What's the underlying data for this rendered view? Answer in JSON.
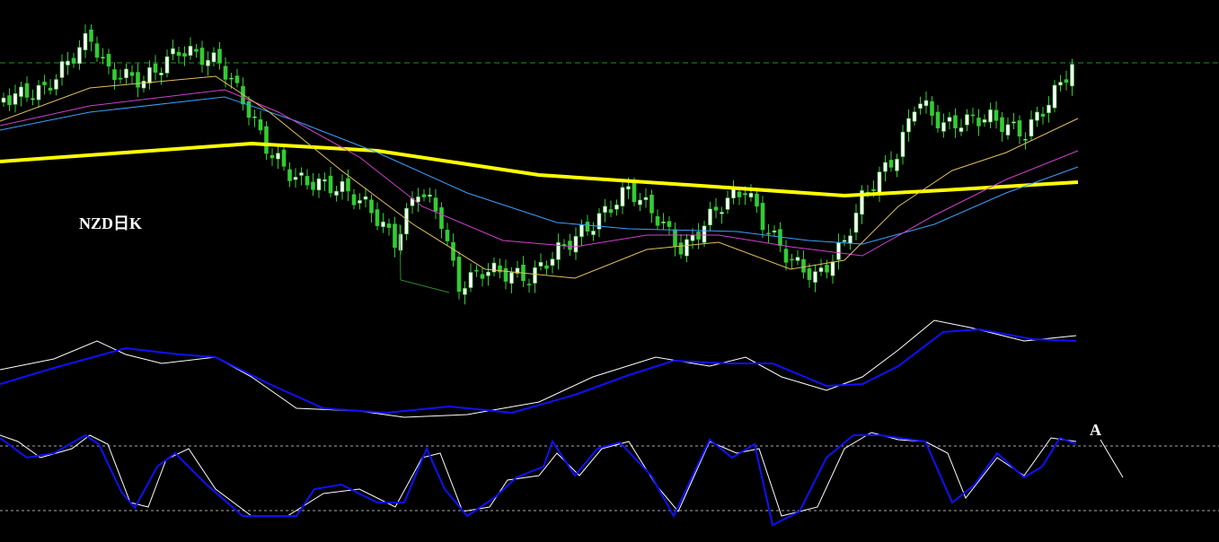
{
  "main_panel": {
    "label": "NZD日K"
  },
  "oscillator_panel": {
    "annotation": "A"
  }
}
